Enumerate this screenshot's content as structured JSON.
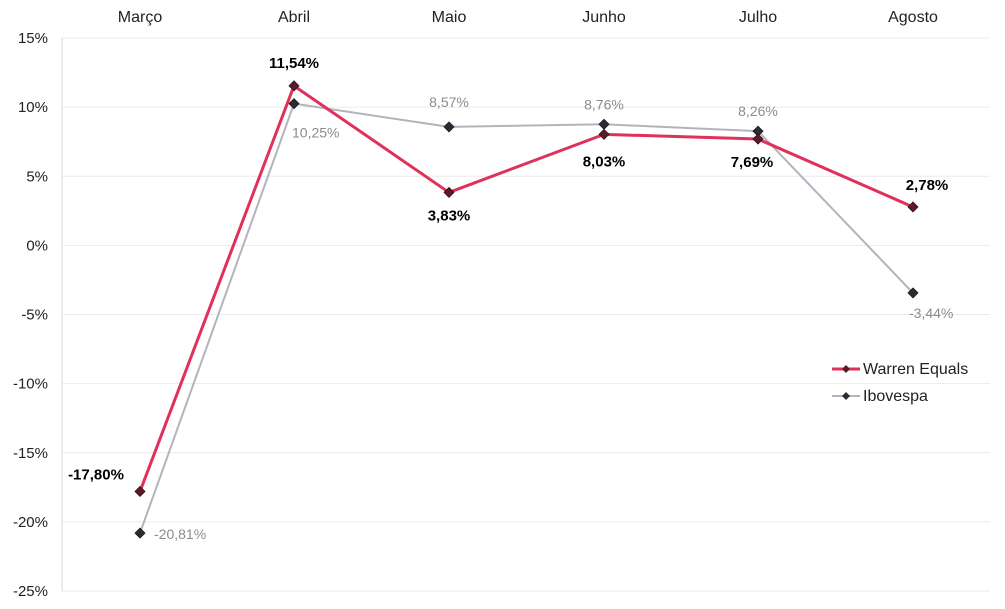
{
  "chart_data": {
    "type": "line",
    "categories": [
      "Março",
      "Abril",
      "Maio",
      "Junho",
      "Julho",
      "Agosto"
    ],
    "y_ticks": [
      "15%",
      "10%",
      "5%",
      "0%",
      "-5%",
      "-10%",
      "-15%",
      "-20%",
      "-25%"
    ],
    "ylim": [
      -25,
      15
    ],
    "grid": true,
    "legend_position": "right",
    "series": [
      {
        "name": "Warren Equals",
        "values": [
          -17.8,
          11.54,
          3.83,
          8.03,
          7.69,
          2.78
        ],
        "labels": [
          "-17,80%",
          "11,54%",
          "3,83%",
          "8,03%",
          "7,69%",
          "2,78%"
        ],
        "color": "#e0315a"
      },
      {
        "name": "Ibovespa",
        "values": [
          -20.81,
          10.25,
          8.57,
          8.76,
          8.26,
          -3.44
        ],
        "labels": [
          "-20,81%",
          "10,25%",
          "8,57%",
          "8,76%",
          "8,26%",
          "-3,44%"
        ],
        "color": "#b3b3bd"
      }
    ]
  }
}
